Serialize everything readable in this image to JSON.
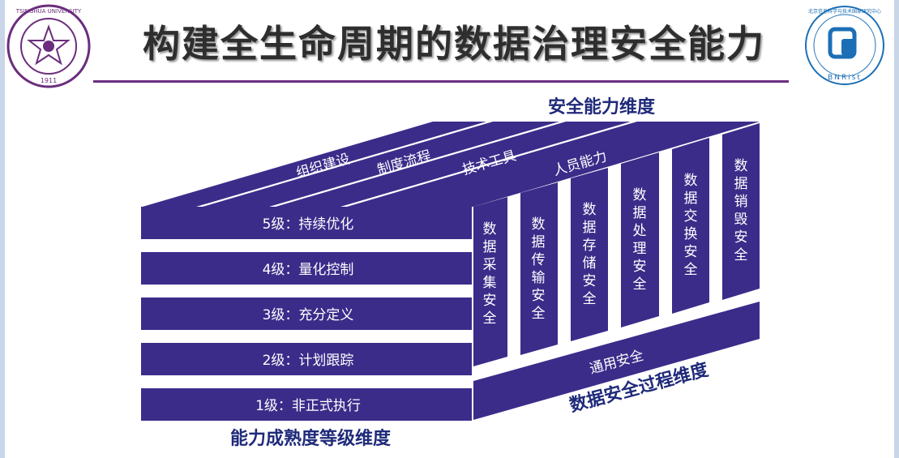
{
  "title": "构建全生命周期的数据治理安全能力",
  "logos": {
    "left": {
      "name": "tsinghua-university-seal",
      "outer_text": "TSINGHUA UNIVERSITY",
      "year": "1911"
    },
    "right": {
      "name": "bnrist-logo",
      "outer_text": "北京信息科学与技术国家研究中心",
      "bottom_text": "BNRist"
    }
  },
  "dimensions": {
    "top": "安全能力维度",
    "bottom_left": "能力成熟度等级维度",
    "bottom_right": "数据安全过程维度"
  },
  "capability_items": [
    "组织建设",
    "制度流程",
    "技术工具",
    "人员能力"
  ],
  "maturity_levels": [
    "5级：持续优化",
    "4级：量化控制",
    "3级：充分定义",
    "2级：计划跟踪",
    "1级：非正式执行"
  ],
  "process_columns": [
    "数据采集安全",
    "数据传输安全",
    "数据存储安全",
    "数据处理安全",
    "数据交换安全",
    "数据销毁安全"
  ],
  "general_security": "通用安全",
  "colors": {
    "bar": "#3b2c8a",
    "title_rule": "#6b2d7d",
    "dimension_text": "#1f2a7a",
    "seal": "#6b2d7d",
    "bnrist": "#1c6fb6"
  }
}
